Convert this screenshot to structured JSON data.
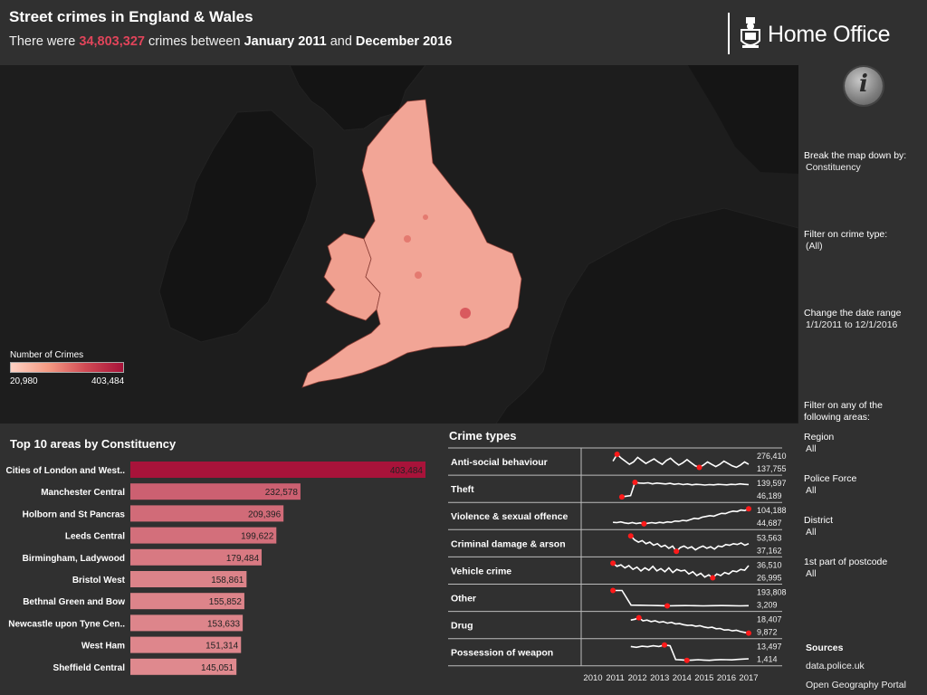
{
  "header": {
    "title": "Street crimes in England & Wales",
    "subtitle_prefix": "There were ",
    "total_crimes": "34,803,327",
    "subtitle_mid": " crimes between ",
    "start_period": "January 2011",
    "subtitle_and": " and ",
    "end_period": "December 2016",
    "logo_text": "Home Office",
    "info_glyph": "i"
  },
  "controls": {
    "breakdown_label": "Break the map down by:",
    "breakdown_value": "Constituency",
    "crime_type_label": "Filter on crime type:",
    "crime_type_value": "(All)",
    "date_label": "Change the date range",
    "date_value": "1/1/2011 to 12/1/2016",
    "areas_label_1": "Filter on any of the",
    "areas_label_2": "following areas:",
    "region_label": "Region",
    "region_value": "All",
    "police_label": "Police Force",
    "police_value": "All",
    "district_label": "District",
    "district_value": "All",
    "postcode_label": "1st part of postcode",
    "postcode_value": "All",
    "sources_label": "Sources",
    "source_1": "data.police.uk",
    "source_2": "Open Geography Portal"
  },
  "legend": {
    "title": "Number of Crimes",
    "min": "20,980",
    "max": "403,484",
    "colors": [
      "#ffd2c4",
      "#f59a83",
      "#d14a54",
      "#a8133a"
    ]
  },
  "colors": {
    "background": "#303030",
    "map_land": "#f2a596",
    "highlight": "#e0445a",
    "marker": "#ff1a1a"
  },
  "chart_data": [
    {
      "type": "bar",
      "title": "Top 10 areas by Constituency",
      "orientation": "horizontal",
      "categories": [
        "Cities of London and West..",
        "Manchester Central",
        "Holborn and St Pancras",
        "Leeds Central",
        "Birmingham, Ladywood",
        "Bristol West",
        "Bethnal Green and Bow",
        "Newcastle upon Tyne Cen..",
        "West Ham",
        "Sheffield Central"
      ],
      "values": [
        403484,
        232578,
        209396,
        199622,
        179484,
        158861,
        155852,
        153633,
        151314,
        145051
      ],
      "labels": [
        "403,484",
        "232,578",
        "209,396",
        "199,622",
        "179,484",
        "158,861",
        "155,852",
        "153,633",
        "151,314",
        "145,051"
      ],
      "xlim": [
        0,
        403484
      ]
    },
    {
      "type": "line",
      "title": "Crime types",
      "x_ticks": [
        "2010",
        "2011",
        "2012",
        "2013",
        "2014",
        "2015",
        "2016",
        "2017"
      ],
      "xlim": [
        2010,
        2017
      ],
      "series": [
        {
          "name": "Anti-social behaviour",
          "max": "276,410",
          "min": "137,755",
          "start": 2010.9,
          "end": 2017.0,
          "max_at": 2011.6,
          "min_at": 2014.4,
          "values": [
            0.55,
            1.0,
            0.75,
            0.55,
            0.35,
            0.5,
            0.8,
            0.6,
            0.4,
            0.55,
            0.7,
            0.5,
            0.35,
            0.6,
            0.75,
            0.5,
            0.3,
            0.45,
            0.65,
            0.45,
            0.25,
            0.15,
            0.3,
            0.5,
            0.35,
            0.2,
            0.35,
            0.55,
            0.4,
            0.25,
            0.15,
            0.3,
            0.5,
            0.35
          ]
        },
        {
          "name": "Theft",
          "max": "139,597",
          "min": "46,189",
          "start": 2011.3,
          "end": 2017.0,
          "max_at": 2011.9,
          "min_at": 2011.35,
          "values": [
            0.0,
            0.05,
            0.08,
            0.95,
            0.9,
            0.88,
            0.92,
            0.85,
            0.9,
            0.87,
            0.84,
            0.88,
            0.82,
            0.86,
            0.8,
            0.84,
            0.78,
            0.82,
            0.8,
            0.77,
            0.8,
            0.78,
            0.82,
            0.8,
            0.78,
            0.82,
            0.8,
            0.85,
            0.82,
            0.8
          ]
        },
        {
          "name": "Violence & sexual offence",
          "max": "104,188",
          "min": "44,687",
          "start": 2010.9,
          "end": 2017.0,
          "max_at": 2016.95,
          "min_at": 2012.0,
          "values": [
            0.12,
            0.1,
            0.15,
            0.08,
            0.05,
            0.1,
            0.04,
            0.08,
            0.02,
            0.06,
            0.1,
            0.06,
            0.12,
            0.08,
            0.15,
            0.12,
            0.2,
            0.18,
            0.25,
            0.22,
            0.3,
            0.38,
            0.35,
            0.45,
            0.5,
            0.55,
            0.52,
            0.62,
            0.7,
            0.68,
            0.78,
            0.85,
            0.82,
            0.92,
            0.88,
            1.0
          ]
        },
        {
          "name": "Criminal damage & arson",
          "max": "53,563",
          "min": "37,162",
          "start": 2011.7,
          "end": 2017.0,
          "max_at": 2011.8,
          "min_at": 2012.9,
          "values": [
            1.0,
            0.75,
            0.6,
            0.7,
            0.5,
            0.6,
            0.4,
            0.5,
            0.3,
            0.4,
            0.2,
            0.35,
            0.0,
            0.25,
            0.35,
            0.2,
            0.3,
            0.1,
            0.25,
            0.35,
            0.2,
            0.3,
            0.15,
            0.35,
            0.3,
            0.45,
            0.4,
            0.5,
            0.45,
            0.55,
            0.4,
            0.5
          ]
        },
        {
          "name": "Vehicle crime",
          "max": "36,510",
          "min": "26,995",
          "start": 2010.9,
          "end": 2017.0,
          "max_at": 2011.0,
          "min_at": 2014.8,
          "values": [
            1.0,
            0.8,
            0.9,
            0.7,
            0.85,
            0.6,
            0.75,
            0.5,
            0.7,
            0.55,
            0.8,
            0.5,
            0.65,
            0.45,
            0.7,
            0.4,
            0.6,
            0.5,
            0.55,
            0.3,
            0.45,
            0.2,
            0.35,
            0.1,
            0.25,
            0.05,
            0.3,
            0.2,
            0.4,
            0.3,
            0.5,
            0.45,
            0.6,
            0.55,
            0.85
          ]
        },
        {
          "name": "Other",
          "max": "193,808",
          "min": "3,209",
          "start": 2010.9,
          "end": 2017.0,
          "max_at": 2011.0,
          "min_at": 2012.7,
          "values": [
            1.0,
            1.0,
            0.05,
            0.04,
            0.03,
            0.02,
            0.0,
            0.01,
            0.02,
            0.01,
            0.0,
            0.01,
            0.02,
            0.01,
            0.0,
            0.01
          ]
        },
        {
          "name": "Drug",
          "max": "18,407",
          "min": "9,872",
          "start": 2011.7,
          "end": 2017.0,
          "max_at": 2012.1,
          "min_at": 2016.9,
          "values": [
            0.85,
            0.9,
            1.0,
            0.8,
            0.85,
            0.75,
            0.8,
            0.7,
            0.75,
            0.65,
            0.7,
            0.6,
            0.62,
            0.55,
            0.5,
            0.52,
            0.45,
            0.48,
            0.4,
            0.35,
            0.38,
            0.28,
            0.3,
            0.2,
            0.22,
            0.15,
            0.18,
            0.1,
            0.05,
            0.0
          ]
        },
        {
          "name": "Possession of weapon",
          "max": "13,497",
          "min": "1,414",
          "start": 2011.7,
          "end": 2017.0,
          "max_at": 2012.6,
          "min_at": 2013.0,
          "values": [
            0.9,
            0.85,
            0.92,
            0.88,
            0.95,
            0.9,
            1.0,
            0.95,
            0.05,
            0.03,
            0.0,
            0.02,
            0.04,
            0.02,
            0.0,
            0.03,
            0.05,
            0.04,
            0.03,
            0.06,
            0.08,
            0.1
          ]
        }
      ]
    }
  ]
}
